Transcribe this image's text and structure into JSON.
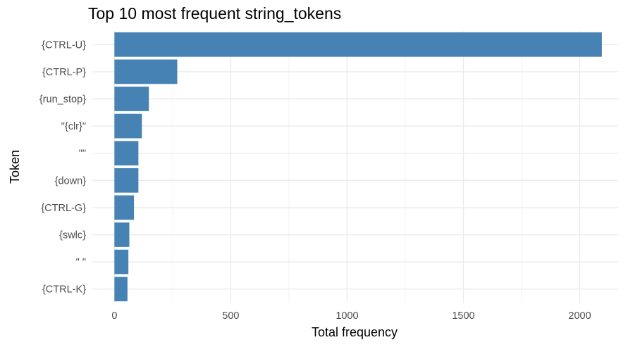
{
  "chart_data": {
    "type": "bar",
    "orientation": "horizontal",
    "title": "Top 10 most frequent string_tokens",
    "xlabel": "Total frequency",
    "ylabel": "Token",
    "categories": [
      "{CTRL-U}",
      "{CTRL-P}",
      "{run_stop}",
      "\"{clr}\"",
      "\"\"",
      "{down}",
      "{CTRL-G}",
      "{swlc}",
      "\" \"",
      "{CTRL-K}"
    ],
    "values": [
      2095,
      270,
      148,
      118,
      103,
      103,
      84,
      64,
      60,
      56
    ],
    "xlim": [
      -95,
      2165
    ],
    "xticks": [
      0,
      500,
      1000,
      1500,
      2000
    ],
    "xtick_labels": [
      "0",
      "500",
      "1000",
      "1500",
      "2000"
    ],
    "bar_color": "#4682B4",
    "grid": true,
    "legend": "none"
  }
}
